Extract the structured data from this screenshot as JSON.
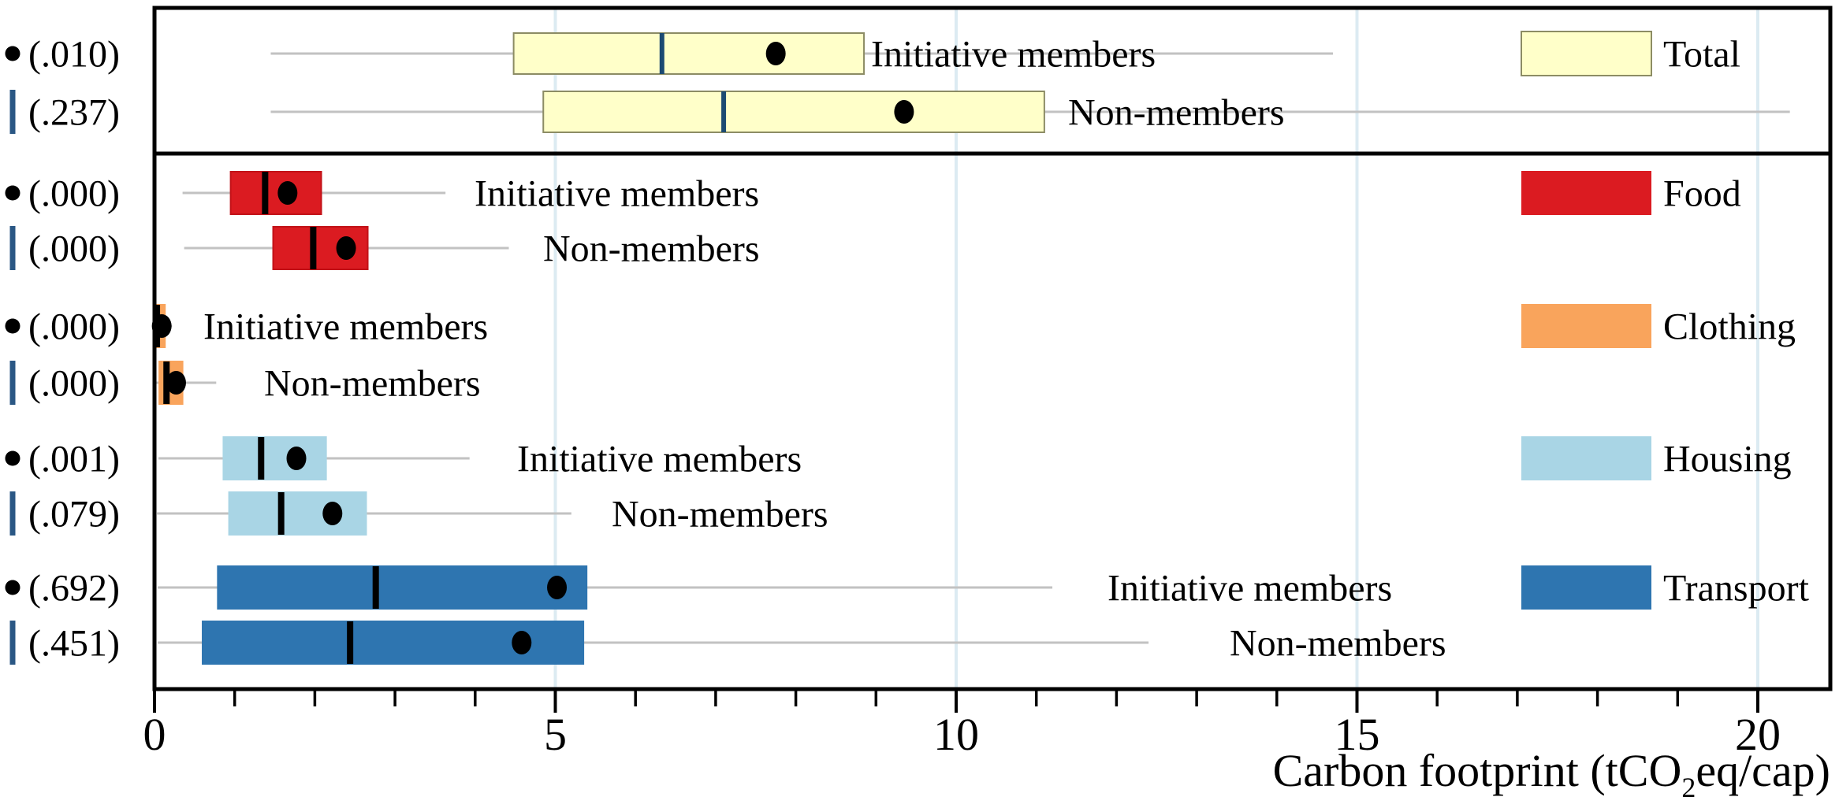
{
  "chart_data": {
    "type": "boxplot",
    "orientation": "horizontal",
    "x_axis": {
      "label_parts": {
        "pre": "Carbon footprint (tCO",
        "sub": "2",
        "post": "eq/cap)"
      },
      "major_ticks": [
        0,
        5,
        10,
        15,
        20
      ],
      "minor_tick_step": 1,
      "range": [
        0,
        20.9
      ],
      "gridlines_at": [
        5,
        10,
        15,
        20
      ],
      "grid_color": "#dcebf2"
    },
    "member_label": "Initiative members",
    "nonmember_label": "Non-members",
    "marker_note_colors": {
      "dot": "#000000",
      "bar": "#2a5784"
    },
    "whisker_color": "#c2c2c2",
    "groups": [
      {
        "name": "Total",
        "fill": "#ffffc9",
        "border": "#8c8c64",
        "median_color": "#1c4a72"
      },
      {
        "name": "Food",
        "fill": "#db1b21",
        "border": "#c21218",
        "median_color": "#000000"
      },
      {
        "name": "Clothing",
        "fill": "#f9a45c",
        "border": "#f9a45c",
        "median_color": "#000000"
      },
      {
        "name": "Housing",
        "fill": "#a9d5e5",
        "border": "#a9d5e5",
        "median_color": "#000000"
      },
      {
        "name": "Transport",
        "fill": "#2e75b0",
        "border": "#2e75b0",
        "median_color": "#000000"
      }
    ],
    "rows": [
      {
        "group": "Total",
        "label": "Initiative members",
        "p": "(.010)",
        "marker": "dot",
        "stats": {
          "lo": 1.45,
          "q1": 4.48,
          "med": 6.33,
          "q3": 8.85,
          "hi": 14.7,
          "mean": 7.75
        }
      },
      {
        "group": "Total",
        "label": "Non-members",
        "p": "(.237)",
        "marker": "bar",
        "stats": {
          "lo": 1.45,
          "q1": 4.85,
          "med": 7.1,
          "q3": 11.1,
          "hi": 20.4,
          "mean": 9.35
        }
      },
      {
        "group": "Food",
        "label": "Initiative members",
        "p": "(.000)",
        "marker": "dot",
        "stats": {
          "lo": 0.35,
          "q1": 0.95,
          "med": 1.38,
          "q3": 2.08,
          "hi": 3.63,
          "mean": 1.66
        }
      },
      {
        "group": "Food",
        "label": "Non-members",
        "p": "(.000)",
        "marker": "bar",
        "stats": {
          "lo": 0.37,
          "q1": 1.48,
          "med": 1.98,
          "q3": 2.66,
          "hi": 4.42,
          "mean": 2.39
        }
      },
      {
        "group": "Clothing",
        "label": "Initiative members",
        "p": "(.000)",
        "marker": "dot",
        "stats": {
          "lo": 0.0,
          "q1": 0.0,
          "med": 0.03,
          "q3": 0.13,
          "hi": 0.22,
          "mean": 0.09
        }
      },
      {
        "group": "Clothing",
        "label": "Non-members",
        "p": "(.000)",
        "marker": "bar",
        "stats": {
          "lo": 0.02,
          "q1": 0.06,
          "med": 0.15,
          "q3": 0.35,
          "hi": 0.77,
          "mean": 0.27
        }
      },
      {
        "group": "Housing",
        "label": "Initiative members",
        "p": "(.001)",
        "marker": "dot",
        "stats": {
          "lo": 0.05,
          "q1": 0.86,
          "med": 1.33,
          "q3": 2.14,
          "hi": 3.93,
          "mean": 1.77
        }
      },
      {
        "group": "Housing",
        "label": "Non-members",
        "p": "(.079)",
        "marker": "bar",
        "stats": {
          "lo": 0.03,
          "q1": 0.93,
          "med": 1.58,
          "q3": 2.64,
          "hi": 5.2,
          "mean": 2.22
        }
      },
      {
        "group": "Transport",
        "label": "Initiative members",
        "p": "(.692)",
        "marker": "dot",
        "stats": {
          "lo": 0.04,
          "q1": 0.79,
          "med": 2.76,
          "q3": 5.39,
          "hi": 11.2,
          "mean": 5.02
        }
      },
      {
        "group": "Transport",
        "label": "Non-members",
        "p": "(.451)",
        "marker": "bar",
        "stats": {
          "lo": 0.04,
          "q1": 0.6,
          "med": 2.44,
          "q3": 5.35,
          "hi": 12.4,
          "mean": 4.58
        }
      }
    ],
    "legend": {
      "position": "right",
      "entries": [
        {
          "label": "Total"
        },
        {
          "label": "Food"
        },
        {
          "label": "Clothing"
        },
        {
          "label": "Housing"
        },
        {
          "label": "Transport"
        }
      ]
    }
  }
}
